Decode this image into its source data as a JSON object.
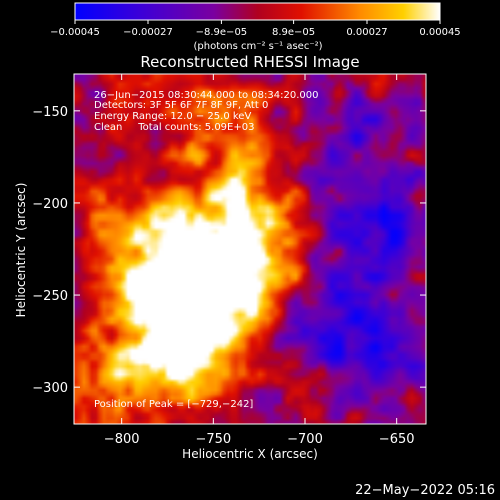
{
  "chart_data": {
    "type": "heatmap",
    "title": "Reconstructed RHESSI Image",
    "xlabel": "Heliocentric X (arcsec)",
    "ylabel": "Heliocentric Y (arcsec)",
    "xlim": [
      -826,
      -634
    ],
    "ylim": [
      -320,
      -130
    ],
    "xticks": [
      -800,
      -750,
      -700,
      -650
    ],
    "yticks": [
      -150,
      -200,
      -250,
      -300
    ],
    "xtick_labels": [
      "−800",
      "−750",
      "−700",
      "−650"
    ],
    "ytick_labels": [
      "−150",
      "−200",
      "−250",
      "−300"
    ],
    "colorbar": {
      "range": [
        -0.00045,
        0.00045
      ],
      "ticks": [
        -0.00045,
        -0.00027,
        -8.9e-05,
        8.9e-05,
        0.00027,
        0.00045
      ],
      "tick_labels": [
        "−0.00045",
        "−0.00027",
        "−8.9e−05",
        "8.9e−05",
        "0.00027",
        "0.00045"
      ],
      "unit_label": "(photons cm⁻² s⁻¹ asec⁻²)"
    },
    "annotations": [
      "26−Jun−2015 08:30:44.000 to 08:34:20.000",
      "Detectors: 3F 5F 6F 7F 8F 9F, Att 0",
      "Energy Range: 12.0 − 25.0 keV",
      "Clean     Total counts: 5.09E+03"
    ],
    "peak_label": "Position of Peak = [−729,−242]",
    "peak": [
      -729,
      -242
    ],
    "hot_sources": [
      {
        "x": -735,
        "y": -242,
        "strength": 0.00045
      },
      {
        "x": -770,
        "y": -250,
        "strength": 0.0004
      },
      {
        "x": -770,
        "y": -282,
        "strength": 0.00036
      },
      {
        "x": -732,
        "y": -210,
        "strength": 0.00028
      },
      {
        "x": -790,
        "y": -220,
        "strength": 0.00022
      },
      {
        "x": -745,
        "y": -165,
        "strength": 0.00018
      },
      {
        "x": -805,
        "y": -300,
        "strength": 0.00016
      }
    ],
    "negative_regions": [
      {
        "x": -660,
        "y": -210,
        "strength": -0.0003
      },
      {
        "x": -690,
        "y": -260,
        "strength": -0.00022
      },
      {
        "x": -680,
        "y": -165,
        "strength": -0.00018
      },
      {
        "x": -655,
        "y": -280,
        "strength": -0.00025
      }
    ]
  },
  "timestamp": "22−May−2022 05:16"
}
